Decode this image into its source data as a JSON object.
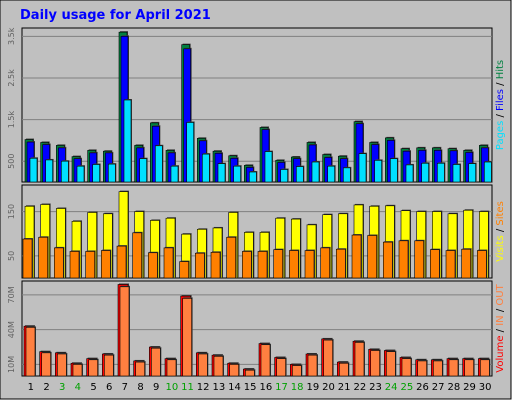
{
  "title": "Daily usage for April 2021",
  "colors": {
    "frame_bg": "#c0c0c0",
    "plot_bg": "#c0c0c0",
    "title": "#0000ff",
    "hits": "#008040",
    "files": "#0000ff",
    "pages": "#00e0ff",
    "visits": "#ffff00",
    "sites": "#ff8000",
    "kbytes": "#ff0000",
    "kbytes_in": "#ff8040",
    "kbytes_out": "#ff8040",
    "weekend_label": "#00a000"
  },
  "chart_data": [
    {
      "type": "bar",
      "panel": "hits-files-pages",
      "categories": [
        "1",
        "2",
        "3",
        "4",
        "5",
        "6",
        "7",
        "8",
        "9",
        "10",
        "11",
        "12",
        "13",
        "14",
        "15",
        "16",
        "17",
        "18",
        "19",
        "20",
        "21",
        "22",
        "23",
        "24",
        "25",
        "26",
        "27",
        "28",
        "29",
        "30"
      ],
      "series": [
        {
          "name": "Hits",
          "values": [
            1020,
            950,
            880,
            610,
            760,
            740,
            3600,
            880,
            1420,
            760,
            3300,
            1050,
            740,
            630,
            400,
            1310,
            520,
            600,
            950,
            660,
            620,
            1450,
            950,
            1060,
            800,
            820,
            820,
            800,
            760,
            880
          ]
        },
        {
          "name": "Files",
          "values": [
            960,
            900,
            820,
            560,
            700,
            700,
            3500,
            820,
            1340,
            700,
            3200,
            990,
            690,
            570,
            350,
            1260,
            470,
            560,
            890,
            590,
            560,
            1400,
            900,
            1000,
            740,
            760,
            760,
            750,
            710,
            820
          ]
        },
        {
          "name": "Pages",
          "values": [
            570,
            530,
            500,
            380,
            420,
            430,
            1970,
            560,
            870,
            380,
            1430,
            670,
            440,
            380,
            240,
            730,
            300,
            370,
            480,
            380,
            340,
            680,
            520,
            560,
            410,
            450,
            450,
            420,
            440,
            480
          ]
        }
      ],
      "y_ticks": [
        "500",
        "1.5k",
        "2.5k",
        "3.5k"
      ],
      "ylim": [
        0,
        3700
      ],
      "axis_label": [
        "Pages",
        " / ",
        "Files",
        " / ",
        "Hits"
      ]
    },
    {
      "type": "bar",
      "panel": "visits-sites",
      "categories": [
        "1",
        "2",
        "3",
        "4",
        "5",
        "6",
        "7",
        "8",
        "9",
        "10",
        "11",
        "12",
        "13",
        "14",
        "15",
        "16",
        "17",
        "18",
        "19",
        "20",
        "21",
        "22",
        "23",
        "24",
        "25",
        "26",
        "27",
        "28",
        "29",
        "30"
      ],
      "series": [
        {
          "name": "Visits",
          "values": [
            162,
            166,
            157,
            128,
            148,
            145,
            195,
            150,
            130,
            135,
            99,
            110,
            113,
            148,
            103,
            103,
            135,
            133,
            120,
            143,
            145,
            165,
            162,
            163,
            152,
            150,
            150,
            145,
            153,
            150
          ]
        },
        {
          "name": "Sites",
          "values": [
            88,
            92,
            68,
            60,
            60,
            62,
            72,
            102,
            57,
            68,
            37,
            56,
            58,
            92,
            60,
            60,
            64,
            62,
            62,
            68,
            65,
            97,
            96,
            81,
            84,
            84,
            64,
            62,
            65,
            62
          ]
        }
      ],
      "y_ticks": [
        "50",
        "150"
      ],
      "ylim": [
        0,
        210
      ],
      "axis_label": [
        "Visits",
        " / ",
        "Sites"
      ]
    },
    {
      "type": "bar",
      "panel": "volume",
      "categories": [
        "1",
        "2",
        "3",
        "4",
        "5",
        "6",
        "7",
        "8",
        "9",
        "10",
        "11",
        "12",
        "13",
        "14",
        "15",
        "16",
        "17",
        "18",
        "19",
        "20",
        "21",
        "22",
        "23",
        "24",
        "25",
        "26",
        "27",
        "28",
        "29",
        "30"
      ],
      "series": [
        {
          "name": "Volume",
          "values": [
            43,
            21,
            20,
            11,
            15,
            19,
            79,
            13,
            25,
            15,
            69,
            20,
            18,
            11,
            6,
            28,
            16,
            10,
            19,
            32,
            12,
            30,
            23,
            22,
            16,
            14,
            14,
            15,
            15,
            15
          ]
        },
        {
          "name": "IN",
          "values": [
            42,
            20,
            19,
            10,
            14,
            18,
            77,
            12,
            24,
            14,
            67,
            19,
            17,
            10,
            5,
            27,
            15,
            9,
            18,
            31,
            11,
            29,
            22,
            21,
            15,
            13,
            13,
            14,
            14,
            14
          ]
        }
      ],
      "y_ticks": [
        "10M",
        "40M",
        "70M"
      ],
      "ylim": [
        0,
        82
      ],
      "axis_label": [
        "Volume",
        " / ",
        "IN",
        " / ",
        "OUT"
      ]
    }
  ],
  "x_labels": [
    "1",
    "2",
    "3",
    "4",
    "5",
    "6",
    "7",
    "8",
    "9",
    "10",
    "11",
    "12",
    "13",
    "14",
    "15",
    "16",
    "17",
    "18",
    "19",
    "20",
    "21",
    "22",
    "23",
    "24",
    "25",
    "26",
    "27",
    "28",
    "29",
    "30"
  ],
  "weekend_days": [
    "3",
    "4",
    "10",
    "11",
    "17",
    "18",
    "24",
    "25"
  ]
}
